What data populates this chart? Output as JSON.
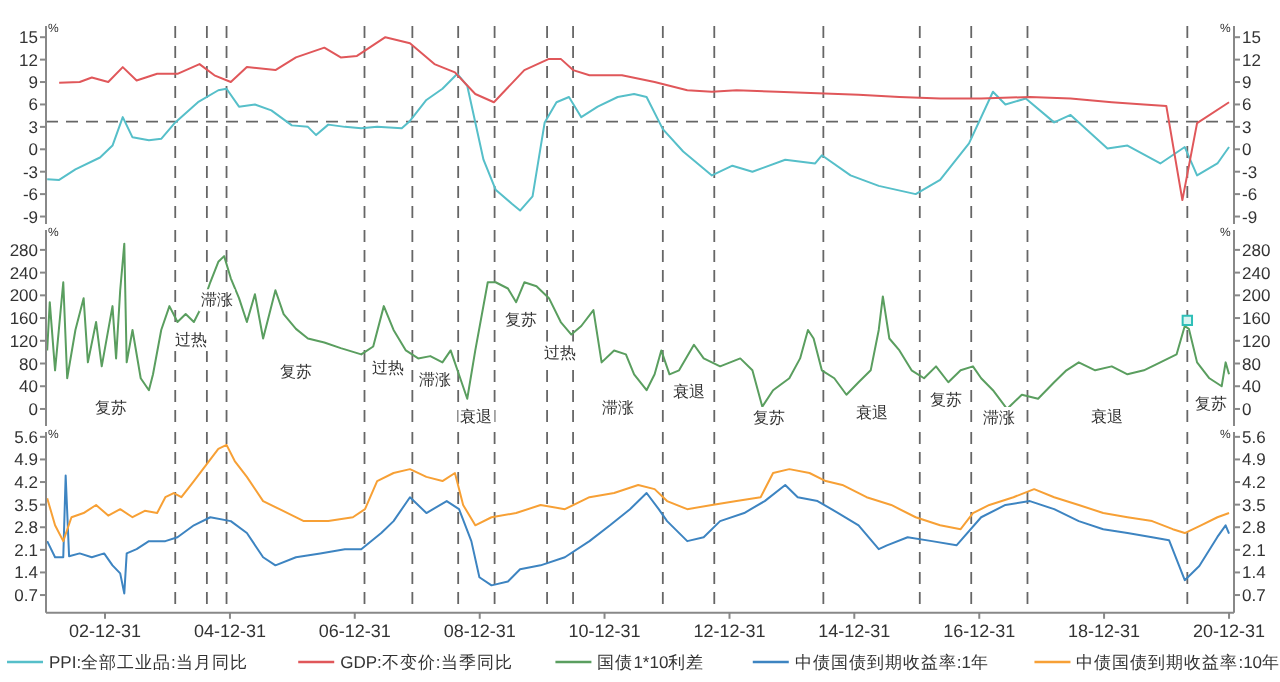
{
  "chart_data": [
    {
      "type": "line",
      "xlim": [
        "2002-01-20",
        "2021-01-29"
      ],
      "ylim": [
        -10,
        16.5
      ],
      "yticks": [
        -9,
        -6,
        -3,
        0,
        3,
        6,
        9,
        12,
        15
      ],
      "y2lim": [
        -10,
        16.5
      ],
      "y2ticks": [
        -9,
        -6,
        -3,
        0,
        3,
        6,
        9,
        12,
        15
      ],
      "ylabel": "%",
      "y2label": "%",
      "tick_labels": "y",
      "legend": "bottom",
      "series": [
        {
          "name": "PPI:全部工业品:当月同比",
          "color": "#56bfc9",
          "x": [
            "2002-01-27",
            "2002-04-07",
            "2002-07-11",
            "2002-12-02",
            "2003-02-13",
            "2003-04-14",
            "2003-06-10",
            "2003-09-14",
            "2003-11-25",
            "2004-02-15",
            "2004-06-27",
            "2004-10-24",
            "2004-12-11",
            "2005-02-22",
            "2005-05-26",
            "2005-08-30",
            "2005-12-28",
            "2006-04-01",
            "2006-05-19",
            "2006-07-29",
            "2006-11-03",
            "2007-02-07",
            "2007-05-11",
            "2007-10-02",
            "2007-11-19",
            "2008-02-23",
            "2008-05-27",
            "2008-08-22",
            "2008-10-19",
            "2009-01-22",
            "2009-04-03",
            "2009-07-07",
            "2009-08-24",
            "2009-11-05",
            "2010-01-15",
            "2010-03-25",
            "2010-06-06",
            "2010-08-17",
            "2010-11-21",
            "2011-03-18",
            "2011-06-22",
            "2011-09-03",
            "2011-12-07",
            "2012-04-04",
            "2012-09-19",
            "2013-01-17",
            "2013-05-14",
            "2013-11-22",
            "2014-05-16",
            "2014-06-24",
            "2014-12-09",
            "2015-05-23",
            "2015-12-25",
            "2016-05-16",
            "2016-11-01",
            "2017-03-21",
            "2017-06-02",
            "2017-09-29",
            "2018-03-14",
            "2018-06-18",
            "2019-01-20",
            "2019-05-17",
            "2019-11-25",
            "2020-04-16",
            "2020-06-27",
            "2020-10-24",
            "2020-12-31"
          ],
          "values": [
            -4,
            -4.1,
            -2.7,
            -1.1,
            0.5,
            4.3,
            1.6,
            1.2,
            1.4,
            3.6,
            6.3,
            7.9,
            8.1,
            5.7,
            6.0,
            5.2,
            3.2,
            3.0,
            1.9,
            3.3,
            3.0,
            2.8,
            3.0,
            2.8,
            3.8,
            6.6,
            8.1,
            10.1,
            8.5,
            -1.4,
            -5.4,
            -7.3,
            -8.2,
            -6.3,
            3.6,
            6.3,
            7.0,
            4.3,
            5.7,
            7.0,
            7.4,
            7.0,
            2.7,
            -0.3,
            -3.5,
            -2.2,
            -3.0,
            -1.4,
            -1.9,
            -0.8,
            -3.5,
            -4.9,
            -6.0,
            -4.1,
            0.8,
            7.7,
            6.0,
            6.8,
            3.6,
            4.6,
            0.1,
            0.5,
            -1.9,
            0.3,
            -3.5,
            -1.9,
            0.3
          ]
        },
        {
          "name": "GDP:不变价:当季同比",
          "color": "#e0575a",
          "x": [
            "2002-04-07",
            "2002-08-05",
            "2002-10-15",
            "2003-01-19",
            "2003-04-14",
            "2003-07-04",
            "2003-11-01",
            "2004-02-28",
            "2004-07-06",
            "2004-10-01",
            "2005-01-05",
            "2005-04-09",
            "2005-09-23",
            "2006-01-21",
            "2006-07-06",
            "2006-10-10",
            "2007-01-13",
            "2007-06-28",
            "2007-11-19",
            "2008-04-10",
            "2008-08-08",
            "2008-12-05",
            "2009-03-24",
            "2009-09-18",
            "2010-02-09",
            "2010-04-19",
            "2010-06-30",
            "2010-10-04",
            "2011-04-12",
            "2011-10-20",
            "2012-04-28",
            "2012-09-19",
            "2013-02-10",
            "2013-10-05",
            "2014-05-30",
            "2015-01-25",
            "2015-09-21",
            "2016-05-16",
            "2017-01-11",
            "2017-10-23",
            "2018-06-18",
            "2019-02-14",
            "2019-08-21",
            "2019-12-30",
            "2020-04-02",
            "2020-06-27",
            "2020-12-31"
          ],
          "values": [
            8.9,
            9.0,
            9.6,
            9.0,
            11.0,
            9.2,
            10.1,
            10.1,
            11.4,
            9.9,
            9.0,
            11.0,
            10.6,
            12.3,
            13.6,
            12.3,
            12.5,
            15.0,
            14.2,
            11.4,
            10.3,
            7.4,
            6.3,
            10.6,
            12.1,
            12.1,
            10.6,
            9.9,
            9.9,
            9.0,
            7.9,
            7.7,
            7.9,
            7.7,
            7.5,
            7.3,
            7.0,
            6.8,
            6.8,
            7.0,
            6.8,
            6.3,
            6.0,
            5.8,
            -6.8,
            3.5,
            6.3
          ]
        }
      ],
      "ref_lines": [
        {
          "axis": "y",
          "value": 3.7,
          "color": "#666666",
          "line_style": "dashed"
        },
        {
          "axis": "x",
          "value": "2004-02-15",
          "color": "#666666",
          "line_style": "dashed"
        },
        {
          "axis": "x",
          "value": "2004-08-18",
          "color": "#666666",
          "line_style": "dashed"
        },
        {
          "axis": "x",
          "value": "2004-12-11",
          "color": "#666666",
          "line_style": "dashed"
        },
        {
          "axis": "x",
          "value": "2007-02-26",
          "color": "#666666",
          "line_style": "dashed"
        },
        {
          "axis": "x",
          "value": "2007-12-03",
          "color": "#666666",
          "line_style": "dashed"
        },
        {
          "axis": "x",
          "value": "2008-08-27",
          "color": "#666666",
          "line_style": "dashed"
        },
        {
          "axis": "x",
          "value": "2009-03-28",
          "color": "#666666",
          "line_style": "dashed"
        },
        {
          "axis": "x",
          "value": "2010-01-29",
          "color": "#666666",
          "line_style": "dashed"
        },
        {
          "axis": "x",
          "value": "2010-06-30",
          "color": "#666666",
          "line_style": "dashed"
        },
        {
          "axis": "x",
          "value": "2011-12-07",
          "color": "#666666",
          "line_style": "dashed"
        },
        {
          "axis": "x",
          "value": "2012-10-03",
          "color": "#666666",
          "line_style": "dashed"
        },
        {
          "axis": "x",
          "value": "2014-07-03",
          "color": "#666666",
          "line_style": "dashed"
        },
        {
          "axis": "x",
          "value": "2016-01-18",
          "color": "#666666",
          "line_style": "dashed"
        },
        {
          "axis": "x",
          "value": "2016-11-14",
          "color": "#666666",
          "line_style": "dashed"
        },
        {
          "axis": "x",
          "value": "2017-10-09",
          "color": "#666666",
          "line_style": "dashed"
        },
        {
          "axis": "x",
          "value": "2020-05-01",
          "color": "#666666",
          "line_style": "dashed"
        }
      ]
    },
    {
      "type": "line",
      "xlim": [
        "2002-01-20",
        "2021-01-29"
      ],
      "ylim": [
        -30,
        315
      ],
      "yticks": [
        0,
        40,
        80,
        120,
        160,
        200,
        240,
        280
      ],
      "y2lim": [
        -30,
        315
      ],
      "y2ticks": [
        0,
        40,
        80,
        120,
        160,
        200,
        240,
        280
      ],
      "ylabel": "%",
      "y2label": "%",
      "tick_labels": "y",
      "legend": "bottom",
      "series": [
        {
          "name": "国债1*10利差",
          "color": "#5a9e5f",
          "x": [
            "2002-01-27",
            "2002-02-11",
            "2002-03-14",
            "2002-05-01",
            "2002-05-24",
            "2002-07-11",
            "2002-08-28",
            "2002-09-22",
            "2002-11-09",
            "2002-12-12",
            "2003-02-13",
            "2003-03-06",
            "2003-03-30",
            "2003-04-23",
            "2003-05-07",
            "2003-06-10",
            "2003-07-28",
            "2003-09-14",
            "2003-10-08",
            "2003-11-25",
            "2004-01-12",
            "2004-02-28",
            "2004-04-16",
            "2004-06-03",
            "2004-07-20",
            "2004-09-07",
            "2004-10-24",
            "2004-11-27",
            "2005-01-05",
            "2005-02-22",
            "2005-04-09",
            "2005-05-26",
            "2005-07-13",
            "2005-09-23",
            "2005-11-10",
            "2006-01-21",
            "2006-04-01",
            "2006-07-06",
            "2006-10-10",
            "2007-02-07",
            "2007-04-18",
            "2007-06-19",
            "2007-08-15",
            "2007-10-26",
            "2008-01-06",
            "2008-03-17",
            "2008-05-27",
            "2008-07-14",
            "2008-09-16",
            "2008-10-19",
            "2008-12-05",
            "2009-02-16",
            "2009-04-03",
            "2009-06-14",
            "2009-08-01",
            "2009-09-18",
            "2009-11-28",
            "2010-02-09",
            "2010-04-19",
            "2010-06-20",
            "2010-08-17",
            "2010-10-27",
            "2010-12-14",
            "2011-02-25",
            "2011-05-05",
            "2011-06-22",
            "2011-09-03",
            "2011-10-20",
            "2011-11-28",
            "2012-01-15",
            "2012-03-11",
            "2012-06-06",
            "2012-08-02",
            "2012-11-06",
            "2013-03-04",
            "2013-05-14",
            "2013-07-11",
            "2013-09-12",
            "2013-12-16",
            "2014-02-17",
            "2014-04-04",
            "2014-05-07",
            "2014-06-24",
            "2014-09-05",
            "2014-11-15",
            "2015-01-25",
            "2015-04-06",
            "2015-05-23",
            "2015-06-16",
            "2015-07-24",
            "2015-09-21",
            "2015-12-01",
            "2016-02-12",
            "2016-04-22",
            "2016-07-03",
            "2016-09-13",
            "2016-11-24",
            "2017-01-11",
            "2017-03-21",
            "2017-06-11",
            "2017-09-06",
            "2017-12-10",
            "2018-03-14",
            "2018-05-25",
            "2018-08-05",
            "2018-11-09",
            "2019-02-14",
            "2019-05-17",
            "2019-08-21",
            "2019-11-25",
            "2020-02-28",
            "2020-04-16",
            "2020-05-10",
            "2020-06-27",
            "2020-09-07",
            "2020-11-18",
            "2020-12-11",
            "2020-12-31"
          ],
          "values": [
            103,
            188,
            68,
            223,
            54,
            139,
            195,
            82,
            153,
            75,
            181,
            89,
            209,
            291,
            82,
            139,
            54,
            33,
            61,
            139,
            181,
            153,
            167,
            153,
            181,
            223,
            259,
            269,
            230,
            195,
            153,
            202,
            124,
            209,
            167,
            141,
            124,
            117,
            107,
            96,
            110,
            181,
            139,
            103,
            89,
            93,
            82,
            103,
            47,
            18,
            103,
            223,
            223,
            212,
            188,
            223,
            216,
            195,
            153,
            131,
            146,
            174,
            82,
            103,
            96,
            61,
            33,
            61,
            103,
            61,
            68,
            113,
            89,
            75,
            89,
            68,
            4,
            33,
            54,
            89,
            139,
            124,
            68,
            54,
            25,
            47,
            68,
            139,
            198,
            124,
            103,
            68,
            54,
            75,
            47,
            68,
            75,
            54,
            33,
            0,
            25,
            18,
            47,
            68,
            82,
            68,
            75,
            61,
            68,
            82,
            96,
            146,
            141,
            82,
            54,
            40,
            82,
            61
          ]
        },
        {
          "type": "scatter",
          "marker": "square",
          "color": "#2fbfb8",
          "x": [
            "2020-05-01"
          ],
          "values": [
            156
          ]
        }
      ],
      "annotations": [
        "复苏",
        "过热",
        "滞涨",
        "复苏",
        "过热",
        "滞涨",
        "衰退",
        "复苏",
        "过热",
        "滞涨",
        "衰退",
        "复苏",
        "衰退",
        "复苏",
        "滞涨",
        "衰退",
        "复苏"
      ],
      "ref_lines": [
        {
          "axis": "x",
          "value": "2004-02-15",
          "color": "#666666",
          "line_style": "dashed"
        },
        {
          "axis": "x",
          "value": "2004-08-18",
          "color": "#666666",
          "line_style": "dashed"
        },
        {
          "axis": "x",
          "value": "2004-12-11",
          "color": "#666666",
          "line_style": "dashed"
        },
        {
          "axis": "x",
          "value": "2007-02-26",
          "color": "#666666",
          "line_style": "dashed"
        },
        {
          "axis": "x",
          "value": "2007-12-03",
          "color": "#666666",
          "line_style": "dashed"
        },
        {
          "axis": "x",
          "value": "2008-08-27",
          "color": "#666666",
          "line_style": "dashed"
        },
        {
          "axis": "x",
          "value": "2009-03-28",
          "color": "#666666",
          "line_style": "dashed"
        },
        {
          "axis": "x",
          "value": "2010-01-29",
          "color": "#666666",
          "line_style": "dashed"
        },
        {
          "axis": "x",
          "value": "2010-06-30",
          "color": "#666666",
          "line_style": "dashed"
        },
        {
          "axis": "x",
          "value": "2011-12-07",
          "color": "#666666",
          "line_style": "dashed"
        },
        {
          "axis": "x",
          "value": "2012-10-03",
          "color": "#666666",
          "line_style": "dashed"
        },
        {
          "axis": "x",
          "value": "2014-07-03",
          "color": "#666666",
          "line_style": "dashed"
        },
        {
          "axis": "x",
          "value": "2016-01-18",
          "color": "#666666",
          "line_style": "dashed"
        },
        {
          "axis": "x",
          "value": "2016-11-14",
          "color": "#666666",
          "line_style": "dashed"
        },
        {
          "axis": "x",
          "value": "2017-10-09",
          "color": "#666666",
          "line_style": "dashed"
        },
        {
          "axis": "x",
          "value": "2020-05-01",
          "color": "#666666",
          "line_style": "dashed"
        }
      ]
    },
    {
      "type": "line",
      "xlim": [
        "2002-01-20",
        "2021-01-29"
      ],
      "xticks": [
        {
          "value": "2002-12-31",
          "label": "02-12-31"
        },
        {
          "value": "2004-12-31",
          "label": "04-12-31"
        },
        {
          "value": "2006-12-31",
          "label": "06-12-31"
        },
        {
          "value": "2008-12-31",
          "label": "08-12-31"
        },
        {
          "value": "2010-12-31",
          "label": "10-12-31"
        },
        {
          "value": "2012-12-31",
          "label": "12-12-31"
        },
        {
          "value": "2014-12-31",
          "label": "14-12-31"
        },
        {
          "value": "2016-12-31",
          "label": "16-12-31"
        },
        {
          "value": "2018-12-31",
          "label": "18-12-31"
        },
        {
          "value": "2020-12-31",
          "label": "20-12-31"
        }
      ],
      "ylim": [
        0.15,
        5.75
      ],
      "yticks": [
        0.7,
        1.4,
        2.1,
        2.8,
        3.5,
        4.2,
        4.9,
        5.6
      ],
      "y2lim": [
        0.15,
        5.75
      ],
      "y2ticks": [
        0.7,
        1.4,
        2.1,
        2.8,
        3.5,
        4.2,
        4.9,
        5.6
      ],
      "ylabel": "%",
      "y2label": "%",
      "legend": "bottom",
      "series": [
        {
          "name": "中债国债到期收益率:1年",
          "color": "#3d84c1",
          "x": [
            "2002-01-27",
            "2002-03-14",
            "2002-05-01",
            "2002-05-15",
            "2002-06-04",
            "2002-08-05",
            "2002-10-15",
            "2002-12-26",
            "2003-02-13",
            "2003-03-30",
            "2003-04-23",
            "2003-05-07",
            "2003-07-04",
            "2003-09-14",
            "2003-12-19",
            "2004-02-28",
            "2004-06-03",
            "2004-09-07",
            "2005-01-05",
            "2005-04-09",
            "2005-07-13",
            "2005-09-23",
            "2006-01-21",
            "2006-06-12",
            "2006-11-03",
            "2007-02-07",
            "2007-06-04",
            "2007-08-15",
            "2007-11-19",
            "2008-02-23",
            "2008-06-21",
            "2008-09-01",
            "2008-11-12",
            "2008-12-29",
            "2009-03-10",
            "2009-06-14",
            "2009-08-24",
            "2009-12-22",
            "2010-05-13",
            "2010-10-04",
            "2011-02-01",
            "2011-05-29",
            "2011-09-03",
            "2011-11-13",
            "2012-01-01",
            "2012-04-28",
            "2012-08-02",
            "2012-11-06",
            "2013-03-27",
            "2013-07-25",
            "2013-11-22",
            "2014-02-03",
            "2014-05-30",
            "2014-09-28",
            "2015-01-25",
            "2015-05-23",
            "2015-07-10",
            "2015-11-08",
            "2016-03-29",
            "2016-08-20",
            "2017-01-11",
            "2017-06-02",
            "2017-10-23",
            "2018-03-14",
            "2018-08-05",
            "2018-12-26",
            "2019-05-17",
            "2019-10-08",
            "2020-01-15",
            "2020-04-16",
            "2020-07-10",
            "2020-10-24",
            "2020-12-11",
            "2020-12-31"
          ],
          "values": [
            2.37,
            1.87,
            1.87,
            4.4,
            1.9,
            1.99,
            1.87,
            1.99,
            1.62,
            1.37,
            0.75,
            1.99,
            2.12,
            2.37,
            2.37,
            2.49,
            2.86,
            3.11,
            2.99,
            2.62,
            1.87,
            1.62,
            1.87,
            1.99,
            2.12,
            2.12,
            2.62,
            2.99,
            3.73,
            3.24,
            3.61,
            3.36,
            2.37,
            1.25,
            1.0,
            1.12,
            1.5,
            1.62,
            1.87,
            2.37,
            2.86,
            3.36,
            3.86,
            3.36,
            2.99,
            2.37,
            2.49,
            2.99,
            3.24,
            3.61,
            4.11,
            3.73,
            3.61,
            3.24,
            2.86,
            2.12,
            2.24,
            2.49,
            2.37,
            2.24,
            3.11,
            3.49,
            3.61,
            3.36,
            2.99,
            2.74,
            2.62,
            2.49,
            2.4,
            1.16,
            1.6,
            2.5,
            2.86,
            2.6
          ]
        },
        {
          "name": "中债国债到期收益率:10年",
          "color": "#f7a035",
          "x": [
            "2002-01-27",
            "2002-03-14",
            "2002-05-01",
            "2002-06-18",
            "2002-08-28",
            "2002-11-09",
            "2003-01-19",
            "2003-03-30",
            "2003-06-10",
            "2003-08-21",
            "2003-11-01",
            "2003-12-19",
            "2004-02-06",
            "2004-03-22",
            "2004-06-03",
            "2004-08-14",
            "2004-10-24",
            "2004-12-11",
            "2005-01-28",
            "2005-04-09",
            "2005-07-13",
            "2005-10-17",
            "2006-03-08",
            "2006-07-29",
            "2006-12-20",
            "2007-03-01",
            "2007-05-11",
            "2007-08-15",
            "2007-11-19",
            "2008-02-23",
            "2008-05-27",
            "2008-08-08",
            "2008-09-25",
            "2008-12-05",
            "2009-03-10",
            "2009-08-01",
            "2009-12-22",
            "2010-05-13",
            "2010-10-04",
            "2011-02-25",
            "2011-07-16",
            "2011-10-20",
            "2012-01-01",
            "2012-04-28",
            "2012-09-19",
            "2013-02-10",
            "2013-07-01",
            "2013-09-12",
            "2013-12-16",
            "2014-04-13",
            "2014-07-17",
            "2014-10-22",
            "2015-03-13",
            "2015-08-04",
            "2015-12-25",
            "2016-05-16",
            "2016-09-13",
            "2016-11-24",
            "2017-02-28",
            "2017-07-19",
            "2017-11-17",
            "2018-03-14",
            "2018-08-05",
            "2018-12-26",
            "2019-05-17",
            "2019-10-08",
            "2020-02-06",
            "2020-04-16",
            "2020-07-20",
            "2020-10-24",
            "2020-12-31"
          ],
          "values": [
            3.7,
            2.86,
            2.37,
            3.11,
            3.24,
            3.49,
            3.16,
            3.36,
            3.11,
            3.31,
            3.24,
            3.73,
            3.86,
            3.73,
            4.23,
            4.73,
            5.23,
            5.35,
            4.85,
            4.36,
            3.61,
            3.36,
            2.99,
            2.99,
            3.11,
            3.36,
            4.23,
            4.48,
            4.6,
            4.36,
            4.23,
            4.48,
            3.49,
            2.86,
            3.11,
            3.24,
            3.49,
            3.36,
            3.73,
            3.86,
            4.11,
            3.98,
            3.61,
            3.36,
            3.49,
            3.61,
            3.73,
            4.48,
            4.6,
            4.48,
            4.23,
            4.11,
            3.73,
            3.49,
            3.11,
            2.86,
            2.74,
            3.24,
            3.49,
            3.73,
            3.98,
            3.73,
            3.49,
            3.24,
            3.11,
            2.99,
            2.74,
            2.62,
            2.86,
            3.11,
            3.24
          ]
        }
      ],
      "ref_lines": [
        {
          "axis": "x",
          "value": "2004-02-15",
          "color": "#666666",
          "line_style": "dashed"
        },
        {
          "axis": "x",
          "value": "2004-08-18",
          "color": "#666666",
          "line_style": "dashed"
        },
        {
          "axis": "x",
          "value": "2004-12-11",
          "color": "#666666",
          "line_style": "dashed"
        },
        {
          "axis": "x",
          "value": "2007-02-26",
          "color": "#666666",
          "line_style": "dashed"
        },
        {
          "axis": "x",
          "value": "2007-12-03",
          "color": "#666666",
          "line_style": "dashed"
        },
        {
          "axis": "x",
          "value": "2008-08-27",
          "color": "#666666",
          "line_style": "dashed"
        },
        {
          "axis": "x",
          "value": "2009-03-28",
          "color": "#666666",
          "line_style": "dashed"
        },
        {
          "axis": "x",
          "value": "2010-01-29",
          "color": "#666666",
          "line_style": "dashed"
        },
        {
          "axis": "x",
          "value": "2010-06-30",
          "color": "#666666",
          "line_style": "dashed"
        },
        {
          "axis": "x",
          "value": "2011-12-07",
          "color": "#666666",
          "line_style": "dashed"
        },
        {
          "axis": "x",
          "value": "2012-10-03",
          "color": "#666666",
          "line_style": "dashed"
        },
        {
          "axis": "x",
          "value": "2014-07-03",
          "color": "#666666",
          "line_style": "dashed"
        },
        {
          "axis": "x",
          "value": "2016-01-18",
          "color": "#666666",
          "line_style": "dashed"
        },
        {
          "axis": "x",
          "value": "2016-11-14",
          "color": "#666666",
          "line_style": "dashed"
        },
        {
          "axis": "x",
          "value": "2017-10-09",
          "color": "#666666",
          "line_style": "dashed"
        },
        {
          "axis": "x",
          "value": "2020-05-01",
          "color": "#666666",
          "line_style": "dashed"
        }
      ]
    }
  ]
}
